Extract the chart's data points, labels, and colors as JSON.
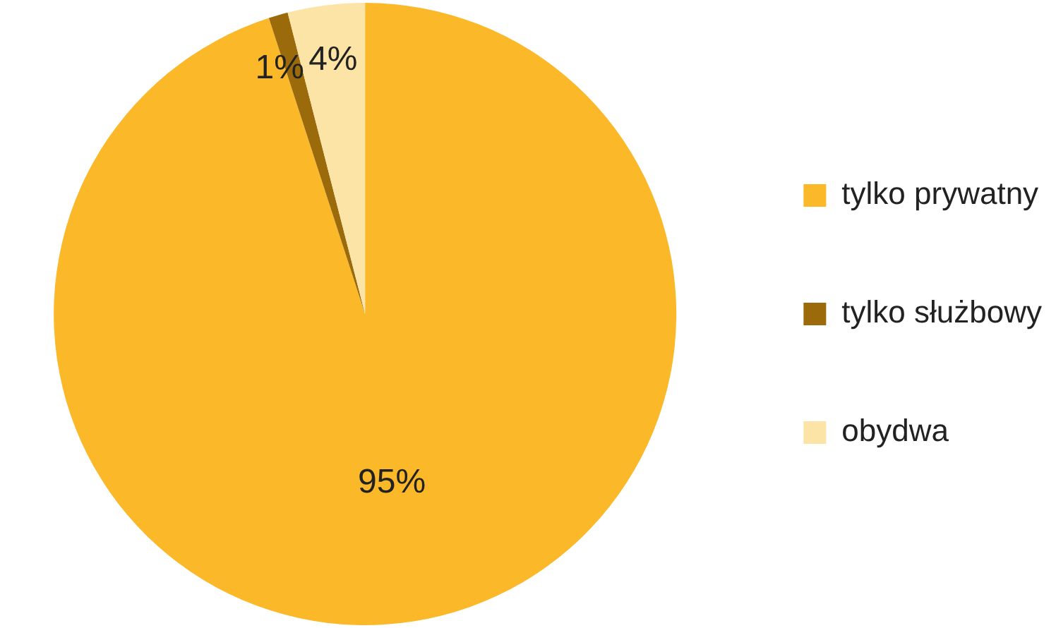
{
  "chart_data": {
    "type": "pie",
    "categories": [
      "tylko prywatny",
      "tylko służbowy",
      "obydwa"
    ],
    "values": [
      95,
      1,
      4
    ],
    "colors": [
      "#fbb829",
      "#9b6a0a",
      "#fce3a6"
    ],
    "value_labels": [
      "95%",
      "1%",
      "4%"
    ],
    "legend": "right"
  }
}
